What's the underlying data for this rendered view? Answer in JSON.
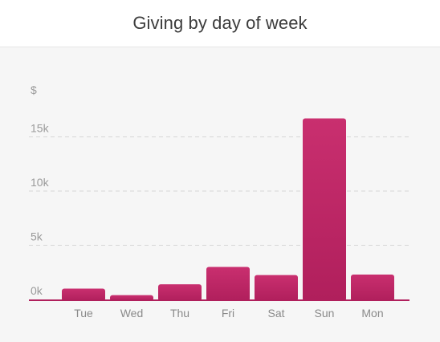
{
  "header": {
    "title": "Giving by day of week"
  },
  "chart_data": {
    "type": "bar",
    "title": "Giving by day of week",
    "ylabel": "$",
    "xlabel": "",
    "categories": [
      "Tue",
      "Wed",
      "Thu",
      "Fri",
      "Sat",
      "Sun",
      "Mon"
    ],
    "values": [
      1000,
      400,
      1400,
      3000,
      2250,
      16700,
      2300
    ],
    "ylim": [
      0,
      19000
    ],
    "yticks": [
      0,
      5000,
      10000,
      15000
    ],
    "ytick_labels": [
      "0k",
      "5k",
      "10k",
      "15k"
    ],
    "grid": true,
    "colors": {
      "bar_top": "#c92f6f",
      "bar_bottom": "#b01f5c",
      "axis": "#b01f5c",
      "grid": "#d6d6d6"
    }
  }
}
